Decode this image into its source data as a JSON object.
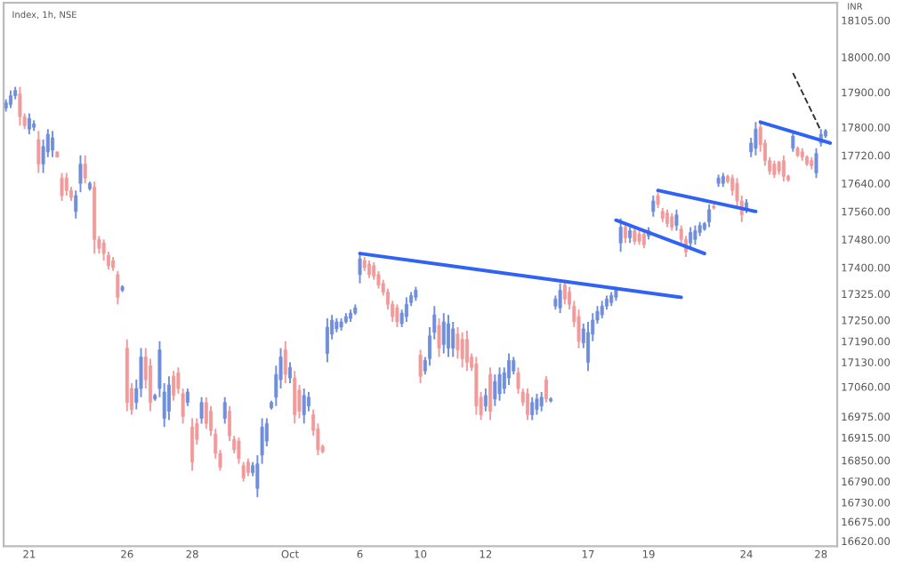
{
  "chart_data": {
    "type": "candlestick",
    "title": "Index, 1h, NSE",
    "ylabel": "INR",
    "ylim": [
      16605,
      18155
    ],
    "yticks": [
      {
        "value": 18105,
        "label": "18105.00"
      },
      {
        "value": 18000,
        "label": "18000.00"
      },
      {
        "value": 17900,
        "label": "17900.00"
      },
      {
        "value": 17800,
        "label": "17800.00"
      },
      {
        "value": 17720,
        "label": "17720.00"
      },
      {
        "value": 17640,
        "label": "17640.00"
      },
      {
        "value": 17560,
        "label": "17560.00"
      },
      {
        "value": 17480,
        "label": "17480.00"
      },
      {
        "value": 17400,
        "label": "17400.00"
      },
      {
        "value": 17325,
        "label": "17325.00"
      },
      {
        "value": 17250,
        "label": "17250.00"
      },
      {
        "value": 17190,
        "label": "17190.00"
      },
      {
        "value": 17130,
        "label": "17130.00"
      },
      {
        "value": 17060,
        "label": "17060.00"
      },
      {
        "value": 16975,
        "label": "16975.00"
      },
      {
        "value": 16915,
        "label": "16915.00"
      },
      {
        "value": 16850,
        "label": "16850.00"
      },
      {
        "value": 16790,
        "label": "16790.00"
      },
      {
        "value": 16730,
        "label": "16730.00"
      },
      {
        "value": 16675,
        "label": "16675.00"
      },
      {
        "value": 16620,
        "label": "16620.00"
      }
    ],
    "grid": false,
    "categories": [
      null,
      null,
      null,
      null,
      null,
      "21",
      null,
      null,
      null,
      null,
      null,
      null,
      null,
      null,
      null,
      null,
      null,
      null,
      null,
      null,
      null,
      null,
      null,
      null,
      null,
      null,
      "26",
      null,
      null,
      null,
      null,
      null,
      null,
      null,
      null,
      null,
      null,
      null,
      null,
      null,
      "28",
      null,
      null,
      null,
      null,
      null,
      null,
      null,
      null,
      null,
      null,
      null,
      null,
      null,
      null,
      null,
      null,
      null,
      null,
      null,
      null,
      "Oct",
      null,
      null,
      null,
      null,
      null,
      null,
      null,
      null,
      null,
      null,
      null,
      null,
      null,
      null,
      "6",
      null,
      null,
      null,
      null,
      null,
      null,
      null,
      null,
      null,
      null,
      null,
      null,
      "10",
      null,
      null,
      null,
      null,
      null,
      null,
      null,
      null,
      null,
      null,
      null,
      null,
      null,
      "12",
      null,
      null,
      null,
      null,
      null,
      null,
      null,
      null,
      null,
      null,
      null,
      null,
      null,
      null,
      null,
      null,
      null,
      null,
      null,
      null,
      null,
      "17",
      null,
      null,
      null,
      null,
      null,
      null,
      null,
      null,
      null,
      null,
      null,
      null,
      "19",
      null,
      null,
      null,
      null,
      null,
      null,
      null,
      null,
      null,
      null,
      null,
      null,
      null,
      null,
      null,
      null,
      null,
      null,
      null,
      null,
      "24",
      null,
      null,
      null,
      null,
      null,
      null,
      null,
      null,
      null,
      null,
      null,
      null,
      null,
      null,
      null,
      "28",
      null,
      null,
      null
    ],
    "ohlc": [
      [
        17855,
        17880,
        17845,
        17870
      ],
      [
        17865,
        17905,
        17855,
        17890
      ],
      [
        17890,
        17915,
        17880,
        17905
      ],
      [
        17895,
        17915,
        17805,
        17830
      ],
      [
        17830,
        17840,
        17795,
        17805
      ],
      [
        17795,
        17840,
        17780,
        17825
      ],
      [
        17800,
        17820,
        17790,
        17810
      ],
      [
        17765,
        17790,
        17670,
        17695
      ],
      [
        17695,
        17765,
        17670,
        17745
      ],
      [
        17730,
        17795,
        17715,
        17780
      ],
      [
        17735,
        17790,
        17715,
        17770
      ],
      [
        17730,
        17730,
        17715,
        17715
      ],
      [
        17655,
        17670,
        17590,
        17605
      ],
      [
        17655,
        17670,
        17605,
        17620
      ],
      [
        17620,
        17630,
        17590,
        17600
      ],
      [
        17560,
        17620,
        17540,
        17605
      ],
      [
        17640,
        17720,
        17615,
        17695
      ],
      [
        17695,
        17720,
        17640,
        17655
      ],
      [
        17625,
        17645,
        17620,
        17640
      ],
      [
        17630,
        17645,
        17440,
        17480
      ],
      [
        17480,
        17490,
        17440,
        17455
      ],
      [
        17470,
        17480,
        17420,
        17440
      ],
      [
        17435,
        17445,
        17395,
        17405
      ],
      [
        17420,
        17430,
        17390,
        17400
      ],
      [
        17380,
        17390,
        17295,
        17315
      ],
      [
        17335,
        17350,
        17330,
        17345
      ],
      [
        17170,
        17195,
        16990,
        17015
      ],
      [
        17055,
        17070,
        16980,
        16995
      ],
      [
        17015,
        17080,
        16995,
        17055
      ],
      [
        17055,
        17170,
        17030,
        17145
      ],
      [
        17145,
        17170,
        17055,
        17080
      ],
      [
        17120,
        17140,
        16990,
        17015
      ],
      [
        17025,
        17040,
        17020,
        17035
      ],
      [
        17055,
        17190,
        17030,
        17165
      ],
      [
        16970,
        17070,
        16945,
        17045
      ],
      [
        16990,
        17090,
        16965,
        17065
      ],
      [
        17090,
        17105,
        17020,
        17035
      ],
      [
        17100,
        17115,
        17040,
        17055
      ],
      [
        17040,
        17055,
        16955,
        16975
      ],
      [
        17015,
        17055,
        17005,
        17045
      ],
      [
        16945,
        16970,
        16820,
        16845
      ],
      [
        16955,
        16970,
        16895,
        16910
      ],
      [
        16970,
        17030,
        16955,
        17015
      ],
      [
        17015,
        17030,
        16940,
        16955
      ],
      [
        16990,
        17005,
        16920,
        16935
      ],
      [
        16925,
        16940,
        16855,
        16870
      ],
      [
        16870,
        16880,
        16820,
        16830
      ],
      [
        16970,
        17030,
        16955,
        17015
      ],
      [
        16990,
        17005,
        16905,
        16920
      ],
      [
        16910,
        16920,
        16870,
        16880
      ],
      [
        16905,
        16915,
        16840,
        16855
      ],
      [
        16835,
        16845,
        16790,
        16800
      ],
      [
        16845,
        16855,
        16805,
        16815
      ],
      [
        16815,
        16845,
        16805,
        16835
      ],
      [
        16770,
        16865,
        16745,
        16840
      ],
      [
        16865,
        16970,
        16840,
        16945
      ],
      [
        16905,
        16970,
        16890,
        16955
      ],
      [
        17000,
        17020,
        16995,
        17015
      ],
      [
        17030,
        17120,
        17005,
        17095
      ],
      [
        17080,
        17170,
        17055,
        17145
      ],
      [
        17165,
        17190,
        17070,
        17095
      ],
      [
        17085,
        17130,
        17070,
        17115
      ],
      [
        17085,
        17105,
        16955,
        16980
      ],
      [
        17050,
        17065,
        16970,
        16990
      ],
      [
        16980,
        17055,
        16955,
        17035
      ],
      [
        17005,
        17045,
        16990,
        17030
      ],
      [
        16980,
        16995,
        16920,
        16935
      ],
      [
        16940,
        16955,
        16865,
        16880
      ],
      [
        16890,
        16895,
        16870,
        16875
      ],
      [
        17155,
        17255,
        17130,
        17230
      ],
      [
        17210,
        17265,
        17195,
        17250
      ],
      [
        17225,
        17255,
        17215,
        17245
      ],
      [
        17230,
        17255,
        17220,
        17245
      ],
      [
        17245,
        17270,
        17240,
        17260
      ],
      [
        17255,
        17280,
        17245,
        17270
      ],
      [
        17270,
        17295,
        17265,
        17285
      ],
      [
        17380,
        17445,
        17355,
        17425
      ],
      [
        17420,
        17430,
        17390,
        17400
      ],
      [
        17410,
        17420,
        17370,
        17380
      ],
      [
        17405,
        17415,
        17365,
        17375
      ],
      [
        17380,
        17390,
        17340,
        17350
      ],
      [
        17355,
        17365,
        17320,
        17330
      ],
      [
        17330,
        17340,
        17280,
        17295
      ],
      [
        17295,
        17305,
        17245,
        17260
      ],
      [
        17285,
        17295,
        17230,
        17245
      ],
      [
        17240,
        17280,
        17230,
        17270
      ],
      [
        17260,
        17315,
        17245,
        17295
      ],
      [
        17300,
        17330,
        17290,
        17320
      ],
      [
        17315,
        17345,
        17305,
        17335
      ],
      [
        17150,
        17165,
        17070,
        17090
      ],
      [
        17105,
        17145,
        17095,
        17135
      ],
      [
        17140,
        17230,
        17120,
        17205
      ],
      [
        17215,
        17290,
        17195,
        17265
      ],
      [
        17235,
        17255,
        17145,
        17170
      ],
      [
        17180,
        17270,
        17155,
        17245
      ],
      [
        17170,
        17265,
        17145,
        17240
      ],
      [
        17170,
        17245,
        17145,
        17225
      ],
      [
        17210,
        17230,
        17140,
        17165
      ],
      [
        17195,
        17215,
        17115,
        17140
      ],
      [
        17195,
        17220,
        17105,
        17130
      ],
      [
        17145,
        17155,
        17105,
        17115
      ],
      [
        17125,
        17145,
        16980,
        17005
      ],
      [
        17030,
        17045,
        16965,
        16980
      ],
      [
        17005,
        17055,
        16990,
        17035
      ],
      [
        17095,
        17115,
        16965,
        16990
      ],
      [
        17025,
        17095,
        17005,
        17075
      ],
      [
        17040,
        17115,
        17020,
        17095
      ],
      [
        17055,
        17115,
        17040,
        17100
      ],
      [
        17085,
        17155,
        17065,
        17135
      ],
      [
        17105,
        17145,
        17095,
        17135
      ],
      [
        17100,
        17115,
        17040,
        17055
      ],
      [
        17045,
        17055,
        17005,
        17015
      ],
      [
        17040,
        17055,
        16965,
        16980
      ],
      [
        16980,
        17030,
        16965,
        17015
      ],
      [
        16995,
        17040,
        16980,
        17025
      ],
      [
        17005,
        17045,
        16990,
        17030
      ],
      [
        17080,
        17090,
        17015,
        17025
      ],
      [
        17020,
        17030,
        17015,
        17025
      ],
      [
        17290,
        17320,
        17280,
        17310
      ],
      [
        17285,
        17355,
        17270,
        17335
      ],
      [
        17350,
        17365,
        17295,
        17310
      ],
      [
        17330,
        17345,
        17280,
        17295
      ],
      [
        17290,
        17305,
        17230,
        17245
      ],
      [
        17260,
        17280,
        17170,
        17190
      ],
      [
        17185,
        17240,
        17170,
        17225
      ],
      [
        17130,
        17245,
        17105,
        17215
      ],
      [
        17210,
        17270,
        17190,
        17250
      ],
      [
        17250,
        17290,
        17240,
        17275
      ],
      [
        17265,
        17305,
        17255,
        17290
      ],
      [
        17290,
        17320,
        17280,
        17310
      ],
      [
        17300,
        17330,
        17290,
        17320
      ],
      [
        17315,
        17345,
        17305,
        17335
      ],
      [
        17470,
        17540,
        17445,
        17515
      ],
      [
        17515,
        17530,
        17470,
        17485
      ],
      [
        17485,
        17520,
        17470,
        17505
      ],
      [
        17505,
        17515,
        17465,
        17475
      ],
      [
        17495,
        17505,
        17465,
        17475
      ],
      [
        17495,
        17505,
        17455,
        17465
      ],
      [
        17490,
        17515,
        17480,
        17505
      ],
      [
        17560,
        17605,
        17545,
        17590
      ],
      [
        17605,
        17615,
        17570,
        17580
      ],
      [
        17560,
        17570,
        17530,
        17540
      ],
      [
        17555,
        17565,
        17515,
        17525
      ],
      [
        17545,
        17555,
        17505,
        17515
      ],
      [
        17520,
        17565,
        17505,
        17550
      ],
      [
        17510,
        17520,
        17470,
        17480
      ],
      [
        17480,
        17490,
        17430,
        17445
      ],
      [
        17470,
        17515,
        17455,
        17500
      ],
      [
        17480,
        17520,
        17465,
        17505
      ],
      [
        17500,
        17530,
        17490,
        17520
      ],
      [
        17510,
        17530,
        17505,
        17525
      ],
      [
        17530,
        17580,
        17515,
        17565
      ],
      [
        17575,
        17580,
        17565,
        17570
      ],
      [
        17640,
        17665,
        17630,
        17655
      ],
      [
        17640,
        17670,
        17630,
        17660
      ],
      [
        17660,
        17665,
        17640,
        17645
      ],
      [
        17655,
        17665,
        17605,
        17620
      ],
      [
        17640,
        17655,
        17570,
        17590
      ],
      [
        17590,
        17605,
        17530,
        17550
      ],
      [
        17565,
        17595,
        17555,
        17585
      ],
      [
        17730,
        17770,
        17715,
        17755
      ],
      [
        17740,
        17815,
        17720,
        17795
      ],
      [
        17800,
        17815,
        17730,
        17750
      ],
      [
        17755,
        17765,
        17690,
        17705
      ],
      [
        17705,
        17715,
        17665,
        17675
      ],
      [
        17695,
        17705,
        17655,
        17665
      ],
      [
        17700,
        17705,
        17665,
        17675
      ],
      [
        17705,
        17720,
        17645,
        17660
      ],
      [
        17660,
        17665,
        17645,
        17650
      ],
      [
        17740,
        17790,
        17730,
        17775
      ],
      [
        17740,
        17745,
        17715,
        17720
      ],
      [
        17730,
        17740,
        17705,
        17715
      ],
      [
        17715,
        17720,
        17690,
        17695
      ],
      [
        17705,
        17715,
        17680,
        17690
      ],
      [
        17670,
        17740,
        17655,
        17725
      ],
      [
        17755,
        17795,
        17745,
        17780
      ],
      [
        17775,
        17795,
        17770,
        17790
      ],
      null,
      null
    ],
    "colors": [
      "#6f8edb",
      "#6f8edb",
      "#6f8edb",
      "#f29a9a",
      "#f29a9a",
      "#6f8edb",
      "#6f8edb",
      "#f29a9a",
      "#6f8edb",
      "#6f8edb",
      "#6f8edb",
      "#f29a9a",
      "#f29a9a",
      "#f29a9a",
      "#f29a9a",
      "#6f8edb",
      "#6f8edb",
      "#f29a9a",
      "#6f8edb",
      "#f29a9a",
      "#f29a9a",
      "#f29a9a",
      "#f29a9a",
      "#f29a9a",
      "#f29a9a",
      "#6f8edb",
      "#f29a9a",
      "#f29a9a",
      "#6f8edb",
      "#6f8edb",
      "#f29a9a",
      "#f29a9a",
      "#6f8edb",
      "#6f8edb",
      "#6f8edb",
      "#6f8edb",
      "#f29a9a",
      "#f29a9a",
      "#f29a9a",
      "#6f8edb",
      "#f29a9a",
      "#f29a9a",
      "#6f8edb",
      "#f29a9a",
      "#f29a9a",
      "#f29a9a",
      "#f29a9a",
      "#6f8edb",
      "#f29a9a",
      "#f29a9a",
      "#f29a9a",
      "#f29a9a",
      "#f29a9a",
      "#6f8edb",
      "#6f8edb",
      "#6f8edb",
      "#6f8edb",
      "#6f8edb",
      "#6f8edb",
      "#6f8edb",
      "#f29a9a",
      "#6f8edb",
      "#f29a9a",
      "#f29a9a",
      "#6f8edb",
      "#6f8edb",
      "#f29a9a",
      "#f29a9a",
      "#f29a9a",
      "#6f8edb",
      "#6f8edb",
      "#6f8edb",
      "#6f8edb",
      "#6f8edb",
      "#6f8edb",
      "#6f8edb",
      "#6f8edb",
      "#f29a9a",
      "#f29a9a",
      "#f29a9a",
      "#f29a9a",
      "#f29a9a",
      "#f29a9a",
      "#f29a9a",
      "#f29a9a",
      "#6f8edb",
      "#6f8edb",
      "#6f8edb",
      "#6f8edb",
      "#f29a9a",
      "#6f8edb",
      "#6f8edb",
      "#6f8edb",
      "#f29a9a",
      "#6f8edb",
      "#6f8edb",
      "#6f8edb",
      "#f29a9a",
      "#f29a9a",
      "#f29a9a",
      "#f29a9a",
      "#f29a9a",
      "#f29a9a",
      "#6f8edb",
      "#f29a9a",
      "#6f8edb",
      "#6f8edb",
      "#6f8edb",
      "#6f8edb",
      "#6f8edb",
      "#f29a9a",
      "#f29a9a",
      "#f29a9a",
      "#6f8edb",
      "#6f8edb",
      "#6f8edb",
      "#f29a9a",
      "#6f8edb",
      "#6f8edb",
      "#6f8edb",
      "#f29a9a",
      "#f29a9a",
      "#f29a9a",
      "#f29a9a",
      "#6f8edb",
      "#6f8edb",
      "#6f8edb",
      "#6f8edb",
      "#6f8edb",
      "#6f8edb",
      "#6f8edb",
      "#6f8edb",
      "#6f8edb",
      "#f29a9a",
      "#6f8edb",
      "#f29a9a",
      "#f29a9a",
      "#f29a9a",
      "#6f8edb",
      "#6f8edb",
      "#f29a9a",
      "#f29a9a",
      "#f29a9a",
      "#f29a9a",
      "#6f8edb",
      "#f29a9a",
      "#f29a9a",
      "#6f8edb",
      "#6f8edb",
      "#6f8edb",
      "#6f8edb",
      "#6f8edb",
      "#f29a9a",
      "#6f8edb",
      "#6f8edb",
      "#f29a9a",
      "#f29a9a",
      "#f29a9a",
      "#f29a9a",
      "#6f8edb",
      "#6f8edb",
      "#6f8edb",
      "#f29a9a",
      "#f29a9a",
      "#f29a9a",
      "#f29a9a",
      "#f29a9a",
      "#f29a9a",
      "#f29a9a",
      "#6f8edb",
      "#f29a9a",
      "#f29a9a",
      "#f29a9a",
      "#f29a9a",
      "#6f8edb",
      "#6f8edb",
      "#6f8edb",
      null,
      null
    ],
    "series": [
      {
        "type": "line",
        "color": "#2f62f5",
        "values": [
          null,
          null,
          null,
          null,
          null,
          null,
          null,
          null,
          null,
          null,
          null,
          null,
          null,
          null,
          null,
          null,
          null,
          null,
          null,
          null,
          null,
          null,
          null,
          null,
          null,
          null,
          null,
          null,
          null,
          null,
          null,
          null,
          null,
          null,
          null,
          null,
          null,
          null,
          null,
          null,
          null,
          null,
          null,
          null,
          null,
          null,
          null,
          null,
          null,
          null,
          null,
          null,
          null,
          null,
          null,
          null,
          null,
          null,
          null,
          null,
          null,
          null,
          null,
          null,
          null,
          null,
          null,
          null,
          null,
          null,
          null,
          null,
          null,
          null,
          null,
          null,
          17440,
          null,
          null,
          null,
          null,
          null,
          null,
          null,
          null,
          null,
          null,
          null,
          null,
          null,
          null,
          null,
          null,
          null,
          null,
          null,
          null,
          null,
          null,
          null,
          null,
          null,
          null,
          null,
          null,
          null,
          null,
          null,
          null,
          null,
          null,
          null,
          null,
          null,
          null,
          null,
          null,
          null,
          null,
          null,
          null,
          null,
          null,
          null,
          null,
          null,
          null,
          null,
          null,
          null,
          null,
          null,
          null,
          null,
          null,
          null,
          null,
          null,
          null,
          null,
          null,
          null,
          null,
          null,
          null,
          17315,
          null,
          null,
          null,
          null,
          null,
          null,
          null,
          null,
          null,
          null,
          null,
          null,
          null,
          null,
          null,
          null,
          null,
          null,
          null,
          null,
          null,
          null,
          null,
          null,
          null,
          null,
          null,
          null,
          null,
          null,
          null,
          null,
          null
        ]
      },
      {
        "type": "line",
        "color": "#2f62f5",
        "values": [
          null,
          null,
          null,
          null,
          null,
          null,
          null,
          null,
          null,
          null,
          null,
          null,
          null,
          null,
          null,
          null,
          null,
          null,
          null,
          null,
          null,
          null,
          null,
          null,
          null,
          null,
          null,
          null,
          null,
          null,
          null,
          null,
          null,
          null,
          null,
          null,
          null,
          null,
          null,
          null,
          null,
          null,
          null,
          null,
          null,
          null,
          null,
          null,
          null,
          null,
          null,
          null,
          null,
          null,
          null,
          null,
          null,
          null,
          null,
          null,
          null,
          null,
          null,
          null,
          null,
          null,
          null,
          null,
          null,
          null,
          null,
          null,
          null,
          null,
          null,
          null,
          null,
          null,
          null,
          null,
          null,
          null,
          null,
          null,
          null,
          null,
          null,
          null,
          null,
          null,
          null,
          null,
          null,
          null,
          null,
          null,
          null,
          null,
          null,
          null,
          null,
          null,
          null,
          null,
          null,
          null,
          null,
          null,
          null,
          null,
          null,
          null,
          null,
          null,
          null,
          null,
          null,
          null,
          null,
          null,
          null,
          null,
          null,
          null,
          null,
          null,
          null,
          null,
          null,
          null,
          null,
          17535,
          null,
          null,
          null,
          null,
          null,
          null,
          null,
          null,
          null,
          null,
          null,
          null,
          null,
          null,
          null,
          null,
          null,
          null,
          17440,
          null,
          null,
          null,
          null,
          null,
          null,
          null,
          null,
          null,
          null,
          null,
          null,
          null,
          null,
          null,
          null,
          null,
          null,
          null,
          null,
          null,
          null,
          null,
          null,
          null,
          null,
          null,
          null
        ]
      },
      {
        "type": "line",
        "color": "#2f62f5",
        "values": [
          null,
          null,
          null,
          null,
          null,
          null,
          null,
          null,
          null,
          null,
          null,
          null,
          null,
          null,
          null,
          null,
          null,
          null,
          null,
          null,
          null,
          null,
          null,
          null,
          null,
          null,
          null,
          null,
          null,
          null,
          null,
          null,
          null,
          null,
          null,
          null,
          null,
          null,
          null,
          null,
          null,
          null,
          null,
          null,
          null,
          null,
          null,
          null,
          null,
          null,
          null,
          null,
          null,
          null,
          null,
          null,
          null,
          null,
          null,
          null,
          null,
          null,
          null,
          null,
          null,
          null,
          null,
          null,
          null,
          null,
          null,
          null,
          null,
          null,
          null,
          null,
          null,
          null,
          null,
          null,
          null,
          null,
          null,
          null,
          null,
          null,
          null,
          null,
          null,
          null,
          null,
          null,
          null,
          null,
          null,
          null,
          null,
          null,
          null,
          null,
          null,
          null,
          null,
          null,
          null,
          null,
          null,
          null,
          null,
          null,
          null,
          null,
          null,
          null,
          null,
          null,
          null,
          null,
          null,
          null,
          null,
          null,
          null,
          null,
          null,
          null,
          null,
          null,
          null,
          null,
          null,
          null,
          null,
          null,
          null,
          null,
          null,
          null,
          null,
          null,
          17620,
          null,
          null,
          null,
          null,
          null,
          null,
          null,
          null,
          null,
          null,
          null,
          null,
          null,
          null,
          null,
          null,
          null,
          null,
          null,
          null,
          17560,
          null,
          null,
          null,
          null,
          null,
          null,
          null,
          null,
          null,
          null,
          null,
          null,
          null,
          null,
          null,
          null,
          null
        ]
      },
      {
        "type": "line",
        "color": "#2f62f5",
        "values": [
          null,
          null,
          null,
          null,
          null,
          null,
          null,
          null,
          null,
          null,
          null,
          null,
          null,
          null,
          null,
          null,
          null,
          null,
          null,
          null,
          null,
          null,
          null,
          null,
          null,
          null,
          null,
          null,
          null,
          null,
          null,
          null,
          null,
          null,
          null,
          null,
          null,
          null,
          null,
          null,
          null,
          null,
          null,
          null,
          null,
          null,
          null,
          null,
          null,
          null,
          null,
          null,
          null,
          null,
          null,
          null,
          null,
          null,
          null,
          null,
          null,
          null,
          null,
          null,
          null,
          null,
          null,
          null,
          null,
          null,
          null,
          null,
          null,
          null,
          null,
          null,
          null,
          null,
          null,
          null,
          null,
          null,
          null,
          null,
          null,
          null,
          null,
          null,
          null,
          null,
          null,
          null,
          null,
          null,
          null,
          null,
          null,
          null,
          null,
          null,
          null,
          null,
          null,
          null,
          null,
          null,
          null,
          null,
          null,
          null,
          null,
          null,
          null,
          null,
          null,
          null,
          null,
          null,
          null,
          null,
          null,
          null,
          null,
          null,
          null,
          null,
          null,
          null,
          null,
          null,
          null,
          null,
          null,
          null,
          null,
          null,
          null,
          null,
          null,
          null,
          null,
          null,
          null,
          null,
          null,
          null,
          null,
          null,
          null,
          null,
          null,
          null,
          null,
          null,
          null,
          null,
          null,
          null,
          null,
          null,
          null,
          null,
          17815,
          null,
          null,
          null,
          null,
          null,
          null,
          null,
          null,
          null,
          null,
          null,
          null,
          null,
          null,
          17755,
          null
        ]
      },
      {
        "type": "line",
        "color": "#333333",
        "line_style": "dashed",
        "values": [
          null,
          null,
          null,
          null,
          null,
          null,
          null,
          null,
          null,
          null,
          null,
          null,
          null,
          null,
          null,
          null,
          null,
          null,
          null,
          null,
          null,
          null,
          null,
          null,
          null,
          null,
          null,
          null,
          null,
          null,
          null,
          null,
          null,
          null,
          null,
          null,
          null,
          null,
          null,
          null,
          null,
          null,
          null,
          null,
          null,
          null,
          null,
          null,
          null,
          null,
          null,
          null,
          null,
          null,
          null,
          null,
          null,
          null,
          null,
          null,
          null,
          null,
          null,
          null,
          null,
          null,
          null,
          null,
          null,
          null,
          null,
          null,
          null,
          null,
          null,
          null,
          null,
          null,
          null,
          null,
          null,
          null,
          null,
          null,
          null,
          null,
          null,
          null,
          null,
          null,
          null,
          null,
          null,
          null,
          null,
          null,
          null,
          null,
          null,
          null,
          null,
          null,
          null,
          null,
          null,
          null,
          null,
          null,
          null,
          null,
          null,
          null,
          null,
          null,
          null,
          null,
          null,
          null,
          null,
          null,
          null,
          null,
          null,
          null,
          null,
          null,
          null,
          null,
          null,
          null,
          null,
          null,
          null,
          null,
          null,
          null,
          null,
          null,
          null,
          null,
          null,
          null,
          null,
          null,
          null,
          null,
          null,
          null,
          null,
          null,
          null,
          null,
          null,
          null,
          null,
          null,
          null,
          null,
          null,
          null,
          null,
          null,
          null,
          null,
          null,
          null,
          null,
          null,
          null,
          17955,
          null,
          null,
          null,
          null,
          null,
          17790,
          null,
          null,
          null
        ]
      }
    ]
  }
}
